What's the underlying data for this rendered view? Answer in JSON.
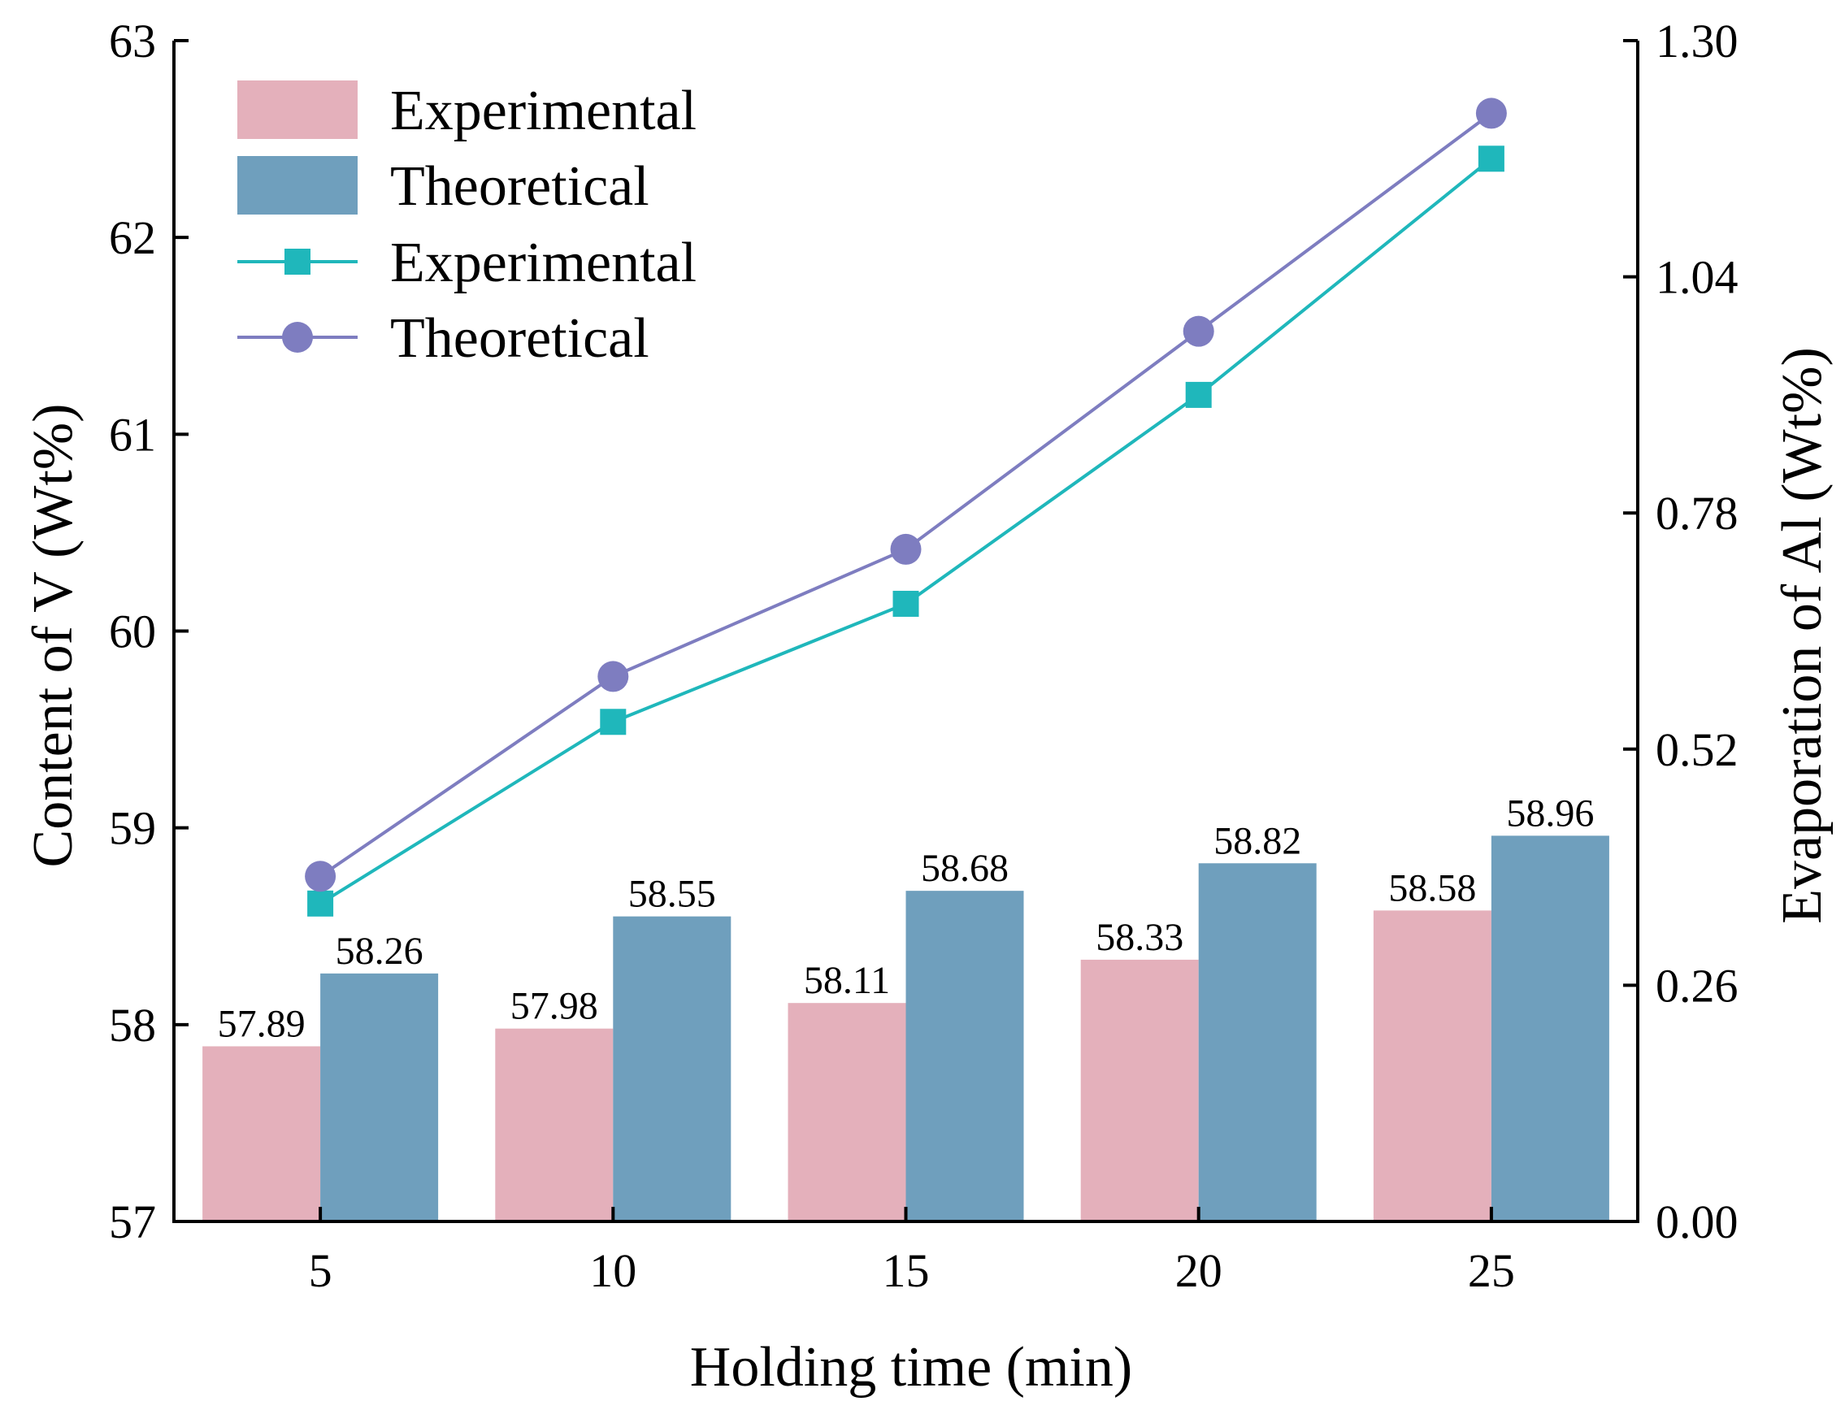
{
  "chart_data": {
    "type": "bar+line",
    "categories": [
      "5",
      "10",
      "15",
      "20",
      "25"
    ],
    "xlabel": "Holding time (min)",
    "ylabel_left": "Content of  V (Wt%)",
    "ylabel_right": "Evaporation of  Al (Wt%)",
    "ylim_left": [
      57,
      63
    ],
    "yticks_left": [
      "57",
      "58",
      "59",
      "60",
      "61",
      "62",
      "63"
    ],
    "ylim_right": [
      0.0,
      1.3
    ],
    "yticks_right": [
      "0.00",
      "0.26",
      "0.52",
      "0.78",
      "1.04",
      "1.30"
    ],
    "bar_series": [
      {
        "name": "Experimental",
        "color": "#e4b0bb",
        "axis": "left",
        "values": [
          57.89,
          57.98,
          58.11,
          58.33,
          58.58
        ],
        "labels": [
          "57.89",
          "57.98",
          "58.11",
          "58.33",
          "58.58"
        ]
      },
      {
        "name": "Theoretical",
        "color": "#6f9fbd",
        "axis": "right_or_left",
        "values": [
          58.26,
          58.55,
          58.68,
          58.82,
          58.96
        ],
        "labels": [
          "58.26",
          "58.55",
          "58.68",
          "58.82",
          "58.96"
        ]
      }
    ],
    "line_series": [
      {
        "name": "Experimental",
        "color": "#1fb7bb",
        "marker": "square",
        "axis": "right",
        "values": [
          0.35,
          0.55,
          0.68,
          0.91,
          1.17
        ]
      },
      {
        "name": "Theoretical",
        "color": "#7e7dc0",
        "marker": "circle",
        "axis": "right",
        "values": [
          0.38,
          0.6,
          0.74,
          0.98,
          1.22
        ]
      }
    ],
    "legend": {
      "position": "top-left",
      "entries": [
        {
          "label": "Experimental",
          "kind": "bar",
          "series": "bar0"
        },
        {
          "label": "Theoretical",
          "kind": "bar",
          "series": "bar1"
        },
        {
          "label": "Experimental",
          "kind": "line",
          "series": "line0"
        },
        {
          "label": "Theoretical",
          "kind": "line",
          "series": "line1"
        }
      ]
    }
  }
}
